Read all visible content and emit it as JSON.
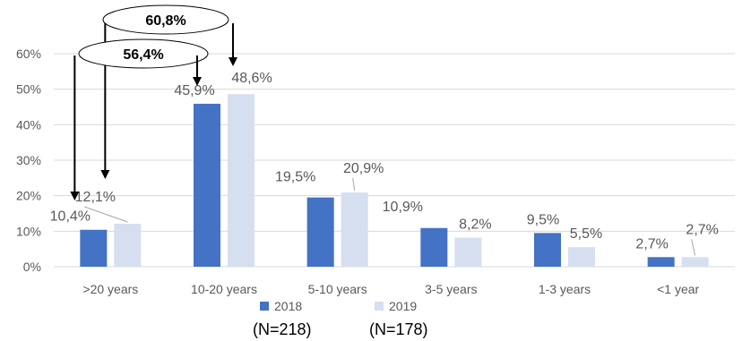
{
  "chart_data": {
    "type": "bar",
    "categories": [
      ">20 years",
      "10-20 years",
      "5-10 years",
      "3-5 years",
      "1-3 years",
      "<1 year"
    ],
    "series": [
      {
        "name": "2018",
        "values": [
          10.4,
          45.9,
          19.5,
          10.9,
          9.5,
          2.7
        ],
        "labels": [
          "10,4%",
          "45,9%",
          "19,5%",
          "10,9%",
          "9,5%",
          "2,7%"
        ],
        "color": "#4472C4"
      },
      {
        "name": "2019",
        "values": [
          12.1,
          48.6,
          20.9,
          8.2,
          5.5,
          2.7
        ],
        "labels": [
          "12,1%",
          "48,6%",
          "20,9%",
          "8,2%",
          "5,5%",
          "2,7%"
        ],
        "color": "#D6DFEF"
      }
    ],
    "ylim": [
      0,
      60
    ],
    "yticks": [
      "0%",
      "10%",
      "20%",
      "30%",
      "40%",
      "50%",
      "60%"
    ],
    "grid": true,
    "legend_position": "bottom",
    "annotations": [
      {
        "text": "60,8%",
        "series": "2019",
        "combines": [
          ">20 years",
          "10-20 years"
        ]
      },
      {
        "text": "56,4%",
        "series": "2018",
        "combines": [
          ">20 years",
          "10-20 years"
        ]
      }
    ],
    "legend_notes": [
      "(N=218)",
      "(N=178)"
    ]
  },
  "colors": {
    "series_2018": "#4472C4",
    "series_2019": "#D6DFEF",
    "grid": "#D9D9D9",
    "axis_text": "#595959",
    "arrow": "#000000"
  }
}
